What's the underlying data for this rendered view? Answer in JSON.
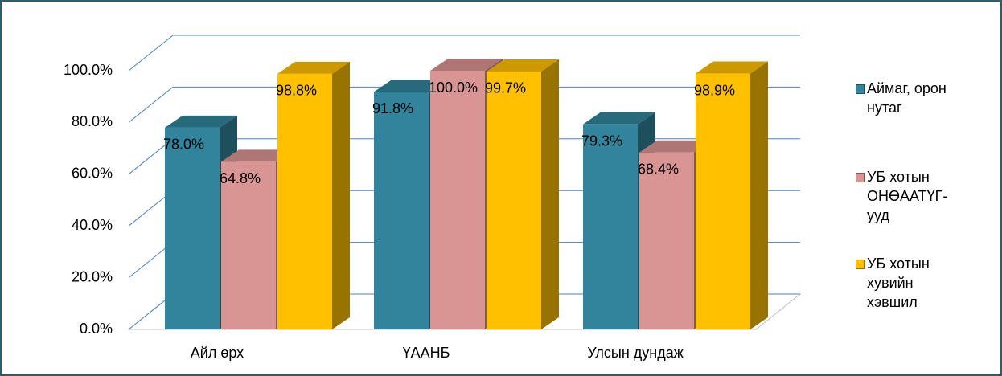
{
  "chart_data": {
    "type": "bar3d",
    "categories": [
      "Айл өрх",
      "ҮААНБ",
      "Улсын дундаж"
    ],
    "series": [
      {
        "name": "Аймаг, орон нутаг",
        "color": "#31849b",
        "values": [
          78.0,
          91.8,
          79.3
        ],
        "value_labels": [
          "78.0%",
          "91.8%",
          "79.3%"
        ]
      },
      {
        "name": "УБ хотын ОНӨААТҮГ-ууд",
        "color": "#d99594",
        "values": [
          64.8,
          100.0,
          68.4
        ],
        "value_labels": [
          "64.8%",
          "100.0%",
          "68.4%"
        ]
      },
      {
        "name": "УБ хотын хувийн хэвшил",
        "color": "#ffc000",
        "values": [
          98.8,
          99.7,
          98.9
        ],
        "value_labels": [
          "98.8%",
          "99.7%",
          "98.9%"
        ]
      }
    ],
    "ylim": [
      0,
      100
    ],
    "yticks": [
      {
        "value": 0,
        "label": "0.0%"
      },
      {
        "value": 20,
        "label": "20.0%"
      },
      {
        "value": 40,
        "label": "40.0%"
      },
      {
        "value": 60,
        "label": "60.0%"
      },
      {
        "value": 80,
        "label": "80.0%"
      },
      {
        "value": 100,
        "label": "100.0%"
      }
    ],
    "grid": true,
    "legend": "right"
  }
}
